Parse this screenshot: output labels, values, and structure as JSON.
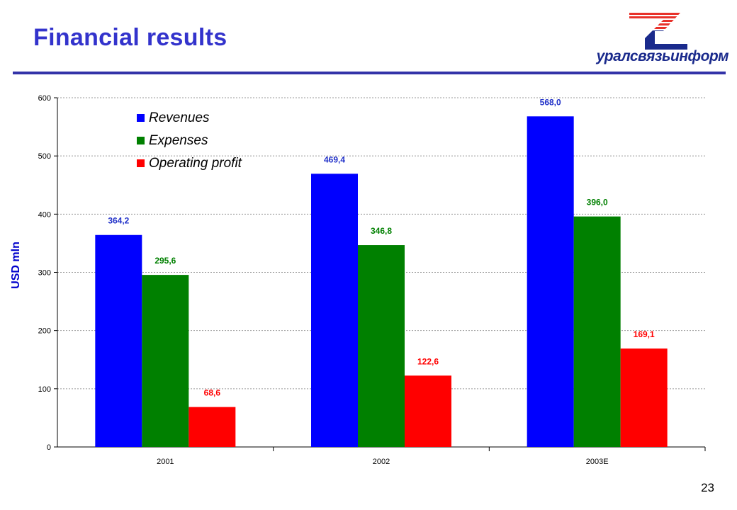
{
  "slide": {
    "title": "Financial results",
    "page_number": "23",
    "logo_text": "уралсвязьинформ"
  },
  "colors": {
    "title": "#3333cc",
    "rule": "#3333a8",
    "revenues": "#0000ff",
    "expenses": "#008000",
    "operating_profit": "#ff0000",
    "logo_red": "#e8312a",
    "logo_blue": "#1a2a8c"
  },
  "chart_data": {
    "type": "bar",
    "categories": [
      "2001",
      "2002",
      "2003E"
    ],
    "series": [
      {
        "name": "Revenues",
        "values": [
          364.2,
          469.4,
          568.0
        ],
        "labels": [
          "364,2",
          "469,4",
          "568,0"
        ],
        "color": "#0000ff"
      },
      {
        "name": "Expenses",
        "values": [
          295.6,
          346.8,
          396.0
        ],
        "labels": [
          "295,6",
          "346,8",
          "396,0"
        ],
        "color": "#008000"
      },
      {
        "name": "Operating profit",
        "values": [
          68.6,
          122.6,
          169.1
        ],
        "labels": [
          "68,6",
          "122,6",
          "169,1"
        ],
        "color": "#ff0000"
      }
    ],
    "ylabel": "USD mln",
    "ylim": [
      0,
      600
    ],
    "yticks": [
      0,
      100,
      200,
      300,
      400,
      500,
      600
    ],
    "grid": true,
    "legend_position": "top-left"
  }
}
